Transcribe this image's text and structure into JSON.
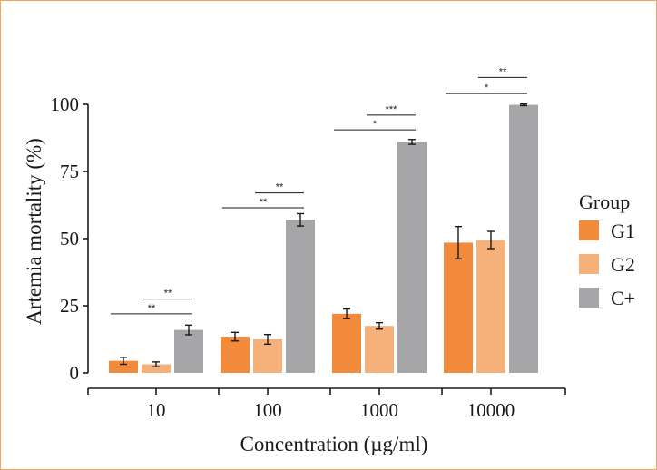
{
  "chart_data": {
    "type": "bar",
    "title": "",
    "xlabel": "Concentration (µg/ml)",
    "ylabel": "Artemia mortality (%)",
    "ylim": [
      0,
      100
    ],
    "yticks": [
      "0",
      "25",
      "50",
      "75",
      "100"
    ],
    "ytick_values": [
      0,
      25,
      50,
      75,
      100
    ],
    "categories": [
      "10",
      "100",
      "1000",
      "10000"
    ],
    "legend_title": "Group",
    "legend_position": "right",
    "series": [
      {
        "name": "G1",
        "color": "#f28a3c",
        "values": [
          4.5,
          13.5,
          22.0,
          48.5
        ],
        "errors": [
          1.3,
          1.6,
          1.8,
          6.0
        ]
      },
      {
        "name": "G2",
        "color": "#f6b07a",
        "values": [
          3.2,
          12.5,
          17.5,
          49.5
        ],
        "errors": [
          0.9,
          1.8,
          1.2,
          3.2
        ]
      },
      {
        "name": "C+",
        "color": "#a6a6a8",
        "values": [
          16.0,
          57.0,
          86.0,
          99.8
        ],
        "errors": [
          1.8,
          2.3,
          0.9,
          0.3
        ]
      }
    ],
    "significance": [
      {
        "category": 0,
        "pair": [
          0,
          2
        ],
        "label": "**",
        "y": 22
      },
      {
        "category": 0,
        "pair": [
          1,
          2
        ],
        "label": "**",
        "y": 27.5
      },
      {
        "category": 1,
        "pair": [
          0,
          2
        ],
        "label": "**",
        "y": 61.5
      },
      {
        "category": 1,
        "pair": [
          1,
          2
        ],
        "label": "**",
        "y": 67
      },
      {
        "category": 2,
        "pair": [
          0,
          2
        ],
        "label": "*",
        "y": 90.5
      },
      {
        "category": 2,
        "pair": [
          1,
          2
        ],
        "label": "***",
        "y": 96
      },
      {
        "category": 3,
        "pair": [
          0,
          2
        ],
        "label": "*",
        "y": 104
      },
      {
        "category": 3,
        "pair": [
          1,
          2
        ],
        "label": "**",
        "y": 110
      }
    ]
  }
}
